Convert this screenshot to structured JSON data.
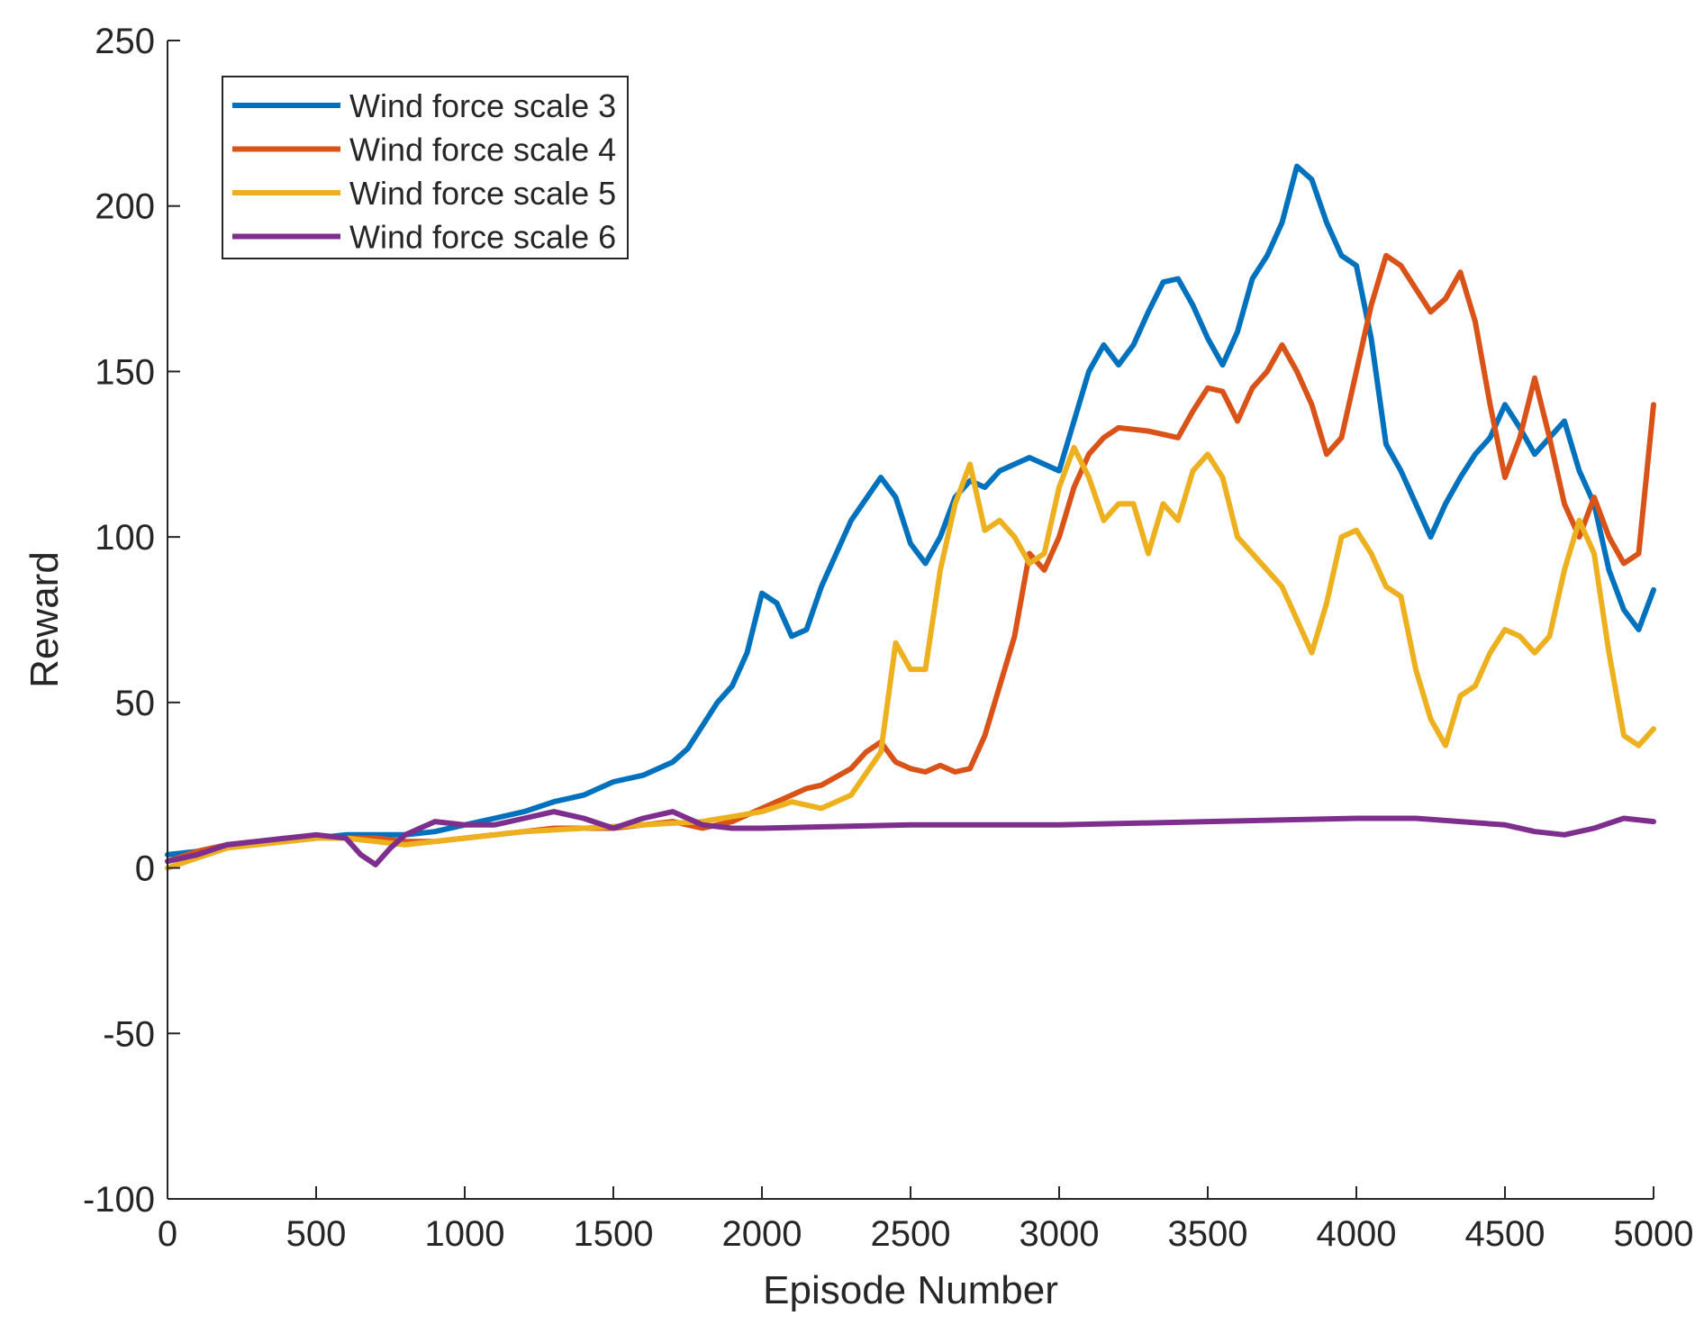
{
  "chart_data": {
    "type": "line",
    "title": "",
    "xlabel": "Episode Number",
    "ylabel": "Reward",
    "xlim": [
      0,
      5000
    ],
    "ylim": [
      -100,
      250
    ],
    "xticks": [
      0,
      500,
      1000,
      1500,
      2000,
      2500,
      3000,
      3500,
      4000,
      4500,
      5000
    ],
    "yticks": [
      -100,
      -50,
      0,
      50,
      100,
      150,
      200,
      250
    ],
    "grid": false,
    "legend_position": "top-left",
    "series": [
      {
        "name": "Wind force scale 3",
        "color": "#0072BD",
        "x": [
          0,
          100,
          200,
          300,
          400,
          500,
          600,
          700,
          800,
          900,
          1000,
          1100,
          1200,
          1300,
          1400,
          1500,
          1600,
          1700,
          1750,
          1800,
          1850,
          1900,
          1950,
          2000,
          2050,
          2100,
          2150,
          2200,
          2300,
          2400,
          2450,
          2500,
          2550,
          2600,
          2650,
          2700,
          2750,
          2800,
          2900,
          3000,
          3050,
          3100,
          3150,
          3200,
          3250,
          3300,
          3350,
          3400,
          3450,
          3500,
          3550,
          3600,
          3650,
          3700,
          3750,
          3800,
          3850,
          3900,
          3950,
          4000,
          4050,
          4100,
          4150,
          4200,
          4250,
          4300,
          4350,
          4400,
          4450,
          4500,
          4550,
          4600,
          4650,
          4700,
          4750,
          4800,
          4850,
          4900,
          4950,
          5000
        ],
        "y": [
          4,
          5,
          7,
          8,
          9,
          9,
          10,
          10,
          10,
          11,
          13,
          15,
          17,
          20,
          22,
          26,
          28,
          32,
          36,
          43,
          50,
          55,
          65,
          83,
          80,
          70,
          72,
          85,
          105,
          118,
          112,
          98,
          92,
          100,
          112,
          117,
          115,
          120,
          124,
          120,
          135,
          150,
          158,
          152,
          158,
          168,
          177,
          178,
          170,
          160,
          152,
          162,
          178,
          185,
          195,
          212,
          208,
          195,
          185,
          182,
          160,
          128,
          120,
          110,
          100,
          110,
          118,
          125,
          130,
          140,
          133,
          125,
          130,
          135,
          120,
          110,
          90,
          78,
          72,
          84
        ]
      },
      {
        "name": "Wind force scale 4",
        "color": "#D95319",
        "x": [
          0,
          100,
          200,
          300,
          400,
          500,
          600,
          700,
          800,
          900,
          1000,
          1100,
          1200,
          1300,
          1400,
          1500,
          1600,
          1700,
          1800,
          1900,
          2000,
          2100,
          2150,
          2200,
          2300,
          2350,
          2400,
          2450,
          2500,
          2550,
          2600,
          2650,
          2700,
          2750,
          2800,
          2850,
          2900,
          2950,
          3000,
          3050,
          3100,
          3150,
          3200,
          3300,
          3400,
          3450,
          3500,
          3550,
          3600,
          3650,
          3700,
          3750,
          3800,
          3850,
          3900,
          3950,
          4000,
          4050,
          4100,
          4150,
          4200,
          4250,
          4300,
          4350,
          4400,
          4450,
          4500,
          4550,
          4600,
          4650,
          4700,
          4750,
          4800,
          4850,
          4900,
          4950,
          5000
        ],
        "y": [
          2,
          5,
          7,
          8,
          8,
          9,
          9,
          9,
          8,
          8,
          9,
          10,
          11,
          12,
          12,
          12,
          13,
          14,
          12,
          14,
          18,
          22,
          24,
          25,
          30,
          35,
          38,
          32,
          30,
          29,
          31,
          29,
          30,
          40,
          55,
          70,
          95,
          90,
          100,
          115,
          125,
          130,
          133,
          132,
          130,
          138,
          145,
          144,
          135,
          145,
          150,
          158,
          150,
          140,
          125,
          130,
          150,
          170,
          185,
          182,
          175,
          168,
          172,
          180,
          165,
          140,
          118,
          130,
          148,
          130,
          110,
          100,
          112,
          100,
          92,
          95,
          140
        ]
      },
      {
        "name": "Wind force scale 5",
        "color": "#EDB120",
        "x": [
          0,
          100,
          200,
          300,
          400,
          500,
          600,
          700,
          800,
          900,
          1000,
          1200,
          1400,
          1600,
          1800,
          2000,
          2100,
          2200,
          2300,
          2400,
          2450,
          2500,
          2550,
          2600,
          2650,
          2700,
          2750,
          2800,
          2850,
          2900,
          2950,
          3000,
          3050,
          3100,
          3150,
          3200,
          3250,
          3300,
          3350,
          3400,
          3450,
          3500,
          3550,
          3600,
          3650,
          3700,
          3750,
          3800,
          3850,
          3900,
          3950,
          4000,
          4050,
          4100,
          4150,
          4200,
          4250,
          4300,
          4350,
          4400,
          4450,
          4500,
          4550,
          4600,
          4650,
          4700,
          4750,
          4800,
          4850,
          4900,
          4950,
          5000
        ],
        "y": [
          0,
          3,
          6,
          7,
          8,
          9,
          9,
          8,
          7,
          8,
          9,
          11,
          12,
          13,
          14,
          17,
          20,
          18,
          22,
          35,
          68,
          60,
          60,
          90,
          110,
          122,
          102,
          105,
          100,
          92,
          95,
          115,
          127,
          118,
          105,
          110,
          110,
          95,
          110,
          105,
          120,
          125,
          118,
          100,
          95,
          90,
          85,
          75,
          65,
          80,
          100,
          102,
          95,
          85,
          82,
          60,
          45,
          37,
          52,
          55,
          65,
          72,
          70,
          65,
          70,
          90,
          105,
          95,
          65,
          40,
          37,
          42
        ]
      },
      {
        "name": "Wind force scale 6",
        "color": "#7E2F8E",
        "x": [
          0,
          100,
          200,
          300,
          400,
          500,
          600,
          650,
          700,
          750,
          800,
          900,
          1000,
          1100,
          1200,
          1300,
          1400,
          1500,
          1600,
          1700,
          1800,
          1900,
          2000,
          2500,
          3000,
          3500,
          4000,
          4200,
          4500,
          4600,
          4700,
          4800,
          4900,
          5000
        ],
        "y": [
          2,
          4,
          7,
          8,
          9,
          10,
          9,
          4,
          1,
          6,
          10,
          14,
          13,
          13,
          15,
          17,
          15,
          12,
          15,
          17,
          13,
          12,
          12,
          13,
          13,
          14,
          15,
          15,
          13,
          11,
          10,
          12,
          15,
          14
        ]
      }
    ]
  }
}
